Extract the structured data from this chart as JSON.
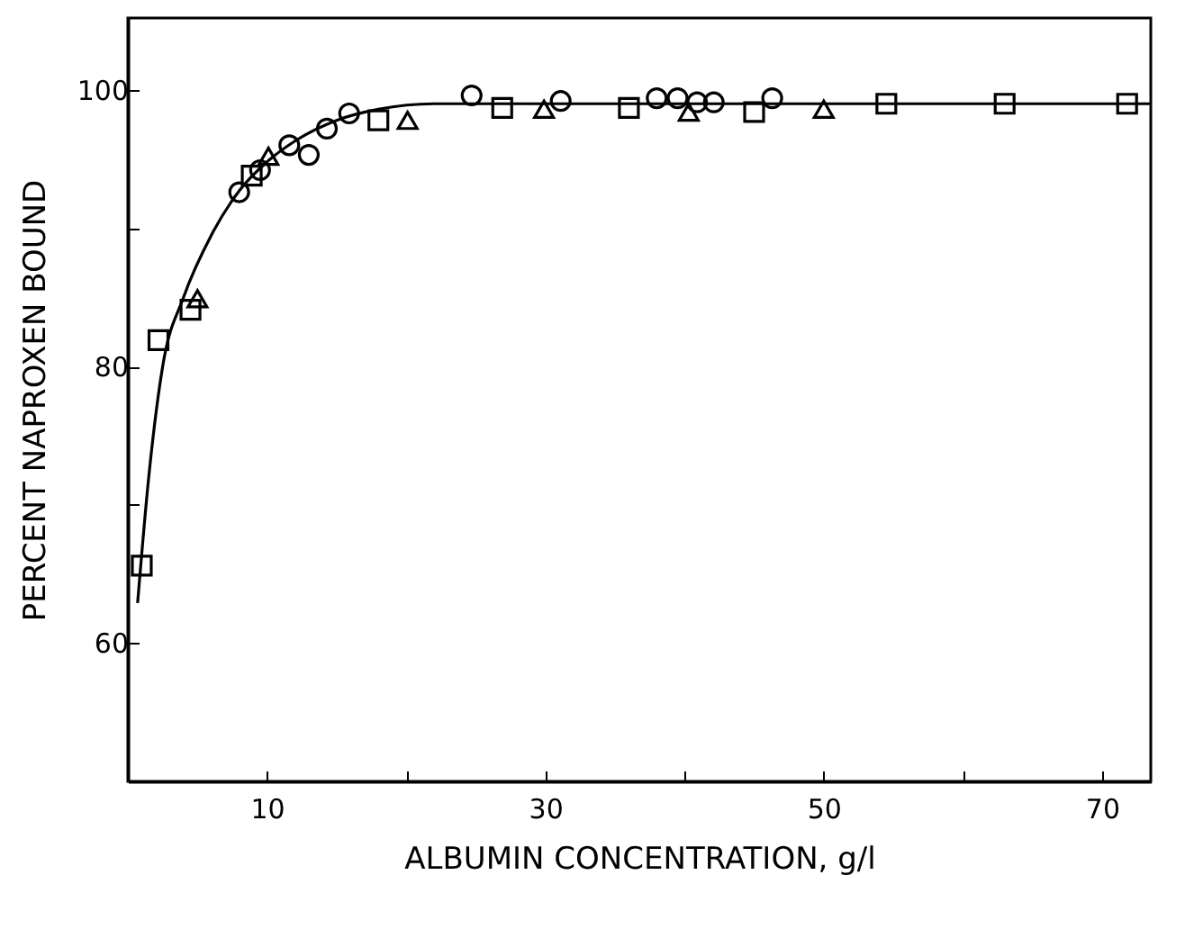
{
  "chart_data": {
    "type": "scatter",
    "xlabel": "ALBUMIN  CONCENTRATION, g/l",
    "ylabel": "PERCENT NAPROXEN BOUND",
    "xlim": [
      0,
      73.5
    ],
    "ylim": [
      50,
      105.2
    ],
    "xticks": [
      {
        "value": 10,
        "label": "10"
      },
      {
        "value": 20,
        "label": null
      },
      {
        "value": 30,
        "label": "30"
      },
      {
        "value": 40,
        "label": null
      },
      {
        "value": 50,
        "label": "50"
      },
      {
        "value": 60,
        "label": null
      },
      {
        "value": 70,
        "label": "70"
      }
    ],
    "yticks": [
      {
        "value": 50,
        "label": null
      },
      {
        "value": 60,
        "label": "60"
      },
      {
        "value": 70,
        "label": null
      },
      {
        "value": 80,
        "label": "80"
      },
      {
        "value": 90,
        "label": null
      },
      {
        "value": 100,
        "label": "100"
      }
    ],
    "grid": false,
    "series": [
      {
        "marker": "square",
        "color": "#000000",
        "x": [
          1.0,
          2.2,
          4.5,
          8.9,
          18.0,
          26.9,
          36.0,
          45.0,
          54.5,
          63.0,
          71.8
        ],
        "values": [
          65.6,
          81.9,
          84.1,
          93.8,
          97.8,
          98.7,
          98.7,
          98.4,
          99.0,
          99.0,
          99.0
        ]
      },
      {
        "marker": "triangle",
        "color": "#000000",
        "x": [
          5.0,
          10.1,
          20.1,
          29.9,
          40.3,
          50.0
        ],
        "values": [
          84.9,
          95.2,
          97.8,
          98.6,
          98.4,
          98.6
        ]
      },
      {
        "marker": "circle",
        "color": "#000000",
        "x": [
          8.0,
          24.7,
          31.1,
          38.0,
          39.5,
          40.9,
          42.1,
          46.3
        ],
        "values": [
          92.6,
          99.6,
          99.2,
          99.4,
          99.4,
          99.1,
          99.1,
          99.4
        ]
      },
      {
        "marker": "circle",
        "color": "#000000",
        "x": [
          9.5,
          11.6,
          13.0,
          14.3,
          15.9
        ],
        "values": [
          94.2,
          96.0,
          95.3,
          97.2,
          98.3
        ]
      },
      {
        "type": "line",
        "marker": "none",
        "line_style": "solid",
        "color": "#000000",
        "x": [
          0.7,
          1.5,
          2.5,
          4,
          6,
          8,
          10,
          12,
          15,
          18,
          22,
          25,
          30,
          73.5
        ],
        "values": [
          62.9,
          72,
          80,
          85,
          89.5,
          92.7,
          94.8,
          96.3,
          97.8,
          98.6,
          99.0,
          99.0,
          99.0,
          99.0
        ]
      }
    ]
  }
}
